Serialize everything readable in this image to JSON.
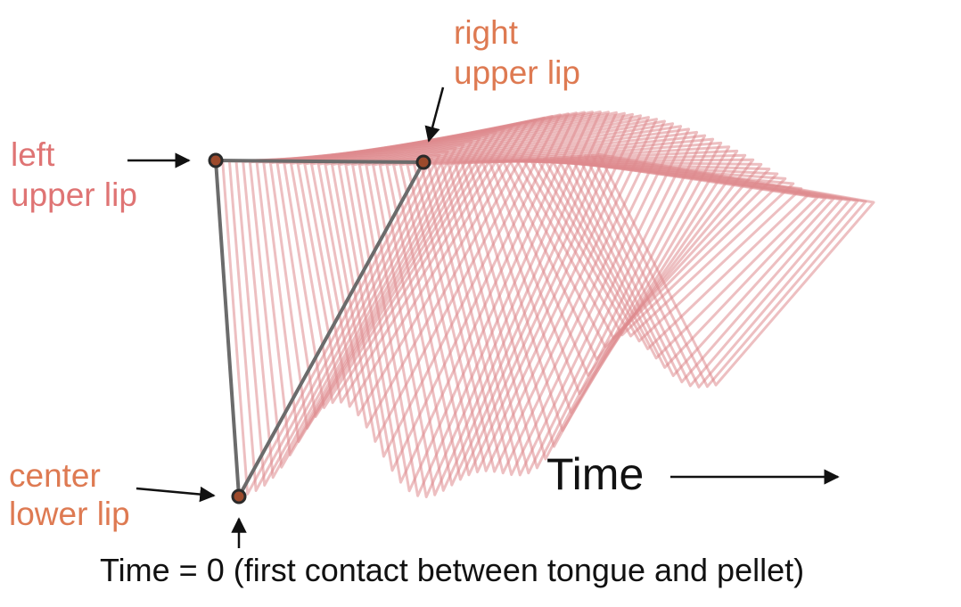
{
  "labels": {
    "left_upper_lip": [
      "left",
      "upper lip"
    ],
    "right_upper_lip": [
      "right",
      "upper lip"
    ],
    "center_lower_lip": [
      "center",
      "lower lip"
    ],
    "time_axis": "Time",
    "time_zero": "Time = 0 (first contact between tongue and pellet)"
  },
  "colors": {
    "trace": "#de8a8e",
    "current_triangle": "#6b6b6b",
    "marker_fill": "#9c4a2c",
    "marker_stroke": "#2a2a2a",
    "left_label": "#df7474",
    "right_label": "#de7a52",
    "center_label": "#de7a52",
    "arrow": "#111111"
  },
  "markers": [
    {
      "id": "left-upper-lip",
      "label": "left upper lip"
    },
    {
      "id": "right-upper-lip",
      "label": "right upper lip"
    },
    {
      "id": "center-lower-lip",
      "label": "center lower lip"
    }
  ],
  "trace_frames": 56
}
